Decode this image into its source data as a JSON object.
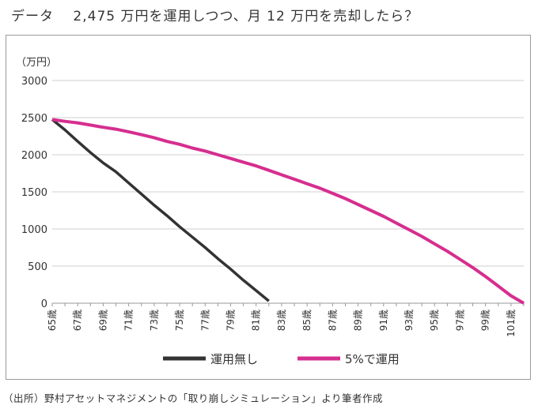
{
  "title": "データ　 2,475 万円を運用しつつ、月 12 万円を売却したら？",
  "source": "（出所）野村アセットマネジメントの「取り崩しシミュレーション」より筆者作成",
  "chart_data": {
    "type": "line",
    "ylabel": "（万円）",
    "ylim": [
      0,
      3000
    ],
    "yticks": [
      0,
      500,
      1000,
      1500,
      2000,
      2500,
      3000
    ],
    "grid": true,
    "legend_position": "bottom",
    "x": [
      65,
      66,
      67,
      68,
      69,
      70,
      71,
      72,
      73,
      74,
      75,
      76,
      77,
      78,
      79,
      80,
      81,
      82,
      83,
      84,
      85,
      86,
      87,
      88,
      89,
      90,
      91,
      92,
      93,
      94,
      95,
      96,
      97,
      98,
      99,
      100,
      101,
      102
    ],
    "xtick_labels": [
      "65歳",
      "67歳",
      "69歳",
      "71歳",
      "73歳",
      "75歳",
      "77歳",
      "79歳",
      "81歳",
      "83歳",
      "85歳",
      "87歳",
      "89歳",
      "91歳",
      "93歳",
      "95歳",
      "97歳",
      "99歳",
      "101歳"
    ],
    "series": [
      {
        "name": "運用無し",
        "color": "#333333",
        "values": [
          2475,
          2335,
          2180,
          2030,
          1890,
          1770,
          1620,
          1470,
          1320,
          1180,
          1030,
          890,
          750,
          600,
          460,
          310,
          170,
          30,
          null,
          null,
          null,
          null,
          null,
          null,
          null,
          null,
          null,
          null,
          null,
          null,
          null,
          null,
          null,
          null,
          null,
          null,
          null,
          null
        ]
      },
      {
        "name": "5%で運用",
        "color": "#d62e8f",
        "values": [
          2475,
          2450,
          2430,
          2400,
          2370,
          2345,
          2310,
          2270,
          2230,
          2180,
          2140,
          2090,
          2050,
          2000,
          1950,
          1900,
          1850,
          1790,
          1730,
          1670,
          1610,
          1550,
          1480,
          1410,
          1330,
          1250,
          1170,
          1080,
          990,
          900,
          800,
          700,
          590,
          480,
          360,
          230,
          100,
          0
        ]
      }
    ]
  }
}
